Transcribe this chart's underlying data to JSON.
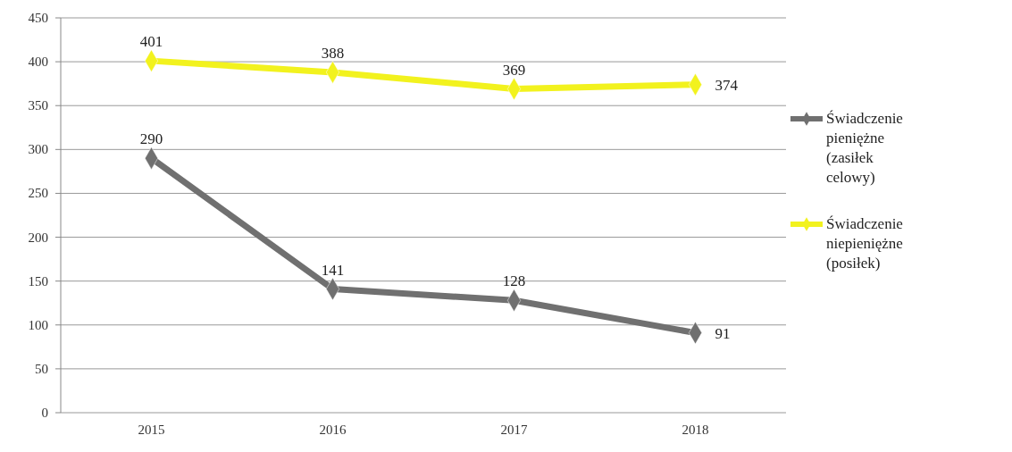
{
  "chart_data": {
    "type": "line",
    "categories": [
      "2015",
      "2016",
      "2017",
      "2018"
    ],
    "series": [
      {
        "name": "Świadczenie pieniężne (zasiłek celowy)",
        "color": "#707070",
        "values": [
          290,
          141,
          128,
          91
        ]
      },
      {
        "name": "Świadczenie niepieniężne (posiłek)",
        "color": "#f2f21e",
        "values": [
          401,
          388,
          369,
          374
        ]
      }
    ],
    "ylim": [
      0,
      450
    ],
    "yticks": [
      0,
      50,
      100,
      150,
      200,
      250,
      300,
      350,
      400,
      450
    ],
    "grid": "y",
    "legend": "right",
    "marker": "diamond",
    "line_style": "solid",
    "data_labels": true
  }
}
